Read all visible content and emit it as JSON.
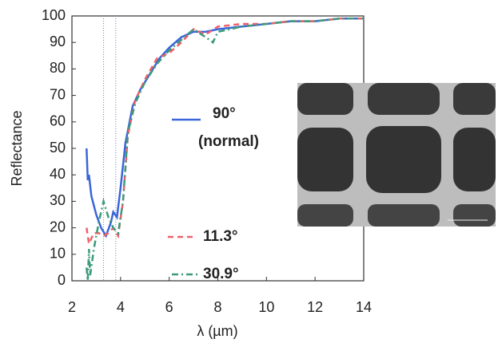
{
  "chart_data": {
    "type": "line",
    "xlabel": "λ (µm)",
    "ylabel": "Reflectance",
    "xlim": [
      2,
      14
    ],
    "xticks": [
      2,
      4,
      6,
      8,
      10,
      12,
      14
    ],
    "ylim": [
      0,
      100
    ],
    "yticks": [
      0,
      10,
      20,
      30,
      40,
      50,
      60,
      70,
      80,
      90,
      100
    ],
    "vlines": [
      3.3,
      3.8
    ],
    "annotation": "(normal)",
    "series": [
      {
        "name": "90°",
        "color": "#3a66d9",
        "x": [
          2.6,
          2.65,
          2.7,
          2.8,
          3.0,
          3.2,
          3.4,
          3.6,
          3.7,
          3.85,
          4.0,
          4.2,
          4.5,
          4.8,
          5.2,
          5.6,
          6.0,
          6.5,
          7.0,
          7.5,
          8.0,
          9.0,
          10,
          11,
          12,
          13,
          14
        ],
        "values": [
          50,
          38,
          40,
          32,
          25,
          20,
          17,
          22,
          26,
          24,
          35,
          52,
          66,
          72,
          78,
          84,
          88,
          92,
          94,
          94,
          95,
          96,
          97,
          98,
          98,
          99,
          99
        ]
      },
      {
        "name": "11.3°",
        "color": "#f0606a",
        "x": [
          2.6,
          2.7,
          2.9,
          3.1,
          3.3,
          3.5,
          3.7,
          3.9,
          4.1,
          4.3,
          4.6,
          5.0,
          5.5,
          6.0,
          6.5,
          7.0,
          7.5,
          8,
          9,
          10,
          11,
          12,
          13,
          14
        ],
        "values": [
          20,
          14,
          18,
          18,
          17,
          18,
          20,
          17,
          30,
          55,
          68,
          76,
          84,
          86,
          90,
          95,
          93,
          96,
          97,
          97,
          98,
          98,
          99,
          99
        ]
      },
      {
        "name": "30.9°",
        "color": "#3c9a7a",
        "x": [
          2.6,
          2.65,
          2.7,
          2.75,
          2.9,
          3.1,
          3.3,
          3.5,
          3.7,
          3.9,
          4.1,
          4.3,
          4.6,
          5.0,
          5.5,
          6.0,
          6.5,
          7.0,
          7.5,
          7.8,
          8,
          9,
          10,
          11,
          12,
          13,
          14
        ],
        "values": [
          5,
          0,
          12,
          2,
          12,
          22,
          30,
          24,
          20,
          18,
          30,
          56,
          67,
          75,
          82,
          87,
          91,
          95,
          92,
          90,
          94,
          96,
          97,
          98,
          98,
          99,
          99
        ]
      }
    ]
  }
}
